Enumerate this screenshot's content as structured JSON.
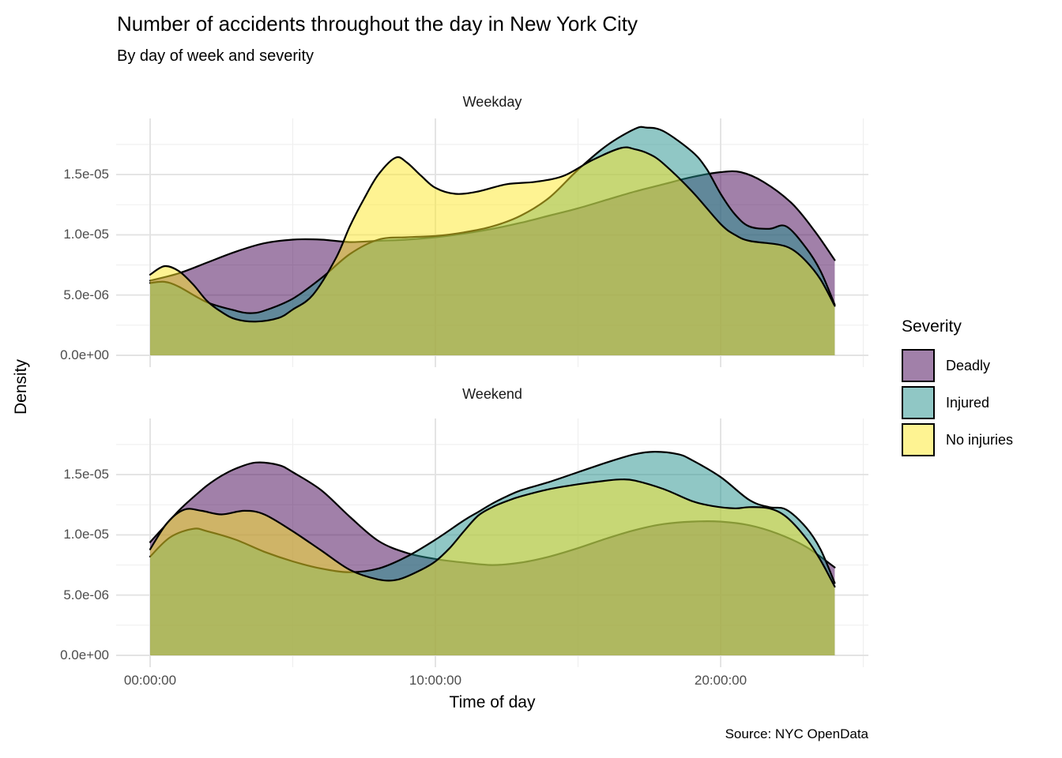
{
  "title": "Number of accidents throughout the day in New York City",
  "subtitle": "By day of week and severity",
  "caption": "Source: NYC OpenData",
  "y_axis": {
    "label": "Density",
    "tick_labels": [
      "0.0e+00",
      "5.0e-06",
      "1.0e-05",
      "1.5e-05"
    ],
    "tick_values_e06": [
      0,
      5,
      10,
      15
    ],
    "minor_values_e06": [
      2.5,
      7.5,
      12.5,
      17.5
    ]
  },
  "x_axis": {
    "label": "Time of day",
    "tick_labels": [
      "00:00:00",
      "10:00:00",
      "20:00:00"
    ],
    "tick_hours": [
      0,
      10,
      20
    ],
    "minor_hours": [
      5,
      15,
      25
    ]
  },
  "legend": {
    "title": "Severity",
    "fill_opacity": 0.5,
    "items": [
      {
        "label": "Deadly",
        "color": "#440154"
      },
      {
        "label": "Injured",
        "color": "#21908C"
      },
      {
        "label": "No injuries",
        "color": "#FDE725"
      }
    ]
  },
  "chart_data": {
    "type": "area",
    "subtype": "overlapping kernel density curves (geom_density), black outline, 50% fill opacity",
    "x_unit": "time of day in hours (0-24)",
    "y_unit": "density, values in 1e-06",
    "xlim_hours": [
      0,
      24
    ],
    "ylim_e06": [
      0,
      19.7
    ],
    "grid": "major and minor light gray gridlines, white background",
    "legend_position": "right",
    "facets": [
      {
        "name": "Weekday",
        "series": [
          {
            "name": "Deadly",
            "color": "#440154",
            "points": [
              [
                0,
                6.2
              ],
              [
                1,
                6.8
              ],
              [
                2,
                7.7
              ],
              [
                3,
                8.6
              ],
              [
                4,
                9.3
              ],
              [
                5,
                9.6
              ],
              [
                6,
                9.6
              ],
              [
                7,
                9.4
              ],
              [
                8,
                9.5
              ],
              [
                9,
                9.6
              ],
              [
                10,
                9.8
              ],
              [
                11,
                10.1
              ],
              [
                12,
                10.5
              ],
              [
                13,
                11
              ],
              [
                14,
                11.6
              ],
              [
                15,
                12.2
              ],
              [
                16,
                12.9
              ],
              [
                17,
                13.6
              ],
              [
                18,
                14.2
              ],
              [
                19,
                14.8
              ],
              [
                20,
                15.2
              ],
              [
                20.7,
                15.2
              ],
              [
                21.5,
                14.4
              ],
              [
                22.5,
                12.6
              ],
              [
                23.3,
                10.3
              ],
              [
                24,
                7.9
              ]
            ]
          },
          {
            "name": "Injured",
            "color": "#21908C",
            "points": [
              [
                0,
                6
              ],
              [
                0.5,
                6.1
              ],
              [
                1,
                5.7
              ],
              [
                2,
                4.4
              ],
              [
                3,
                3.7
              ],
              [
                3.5,
                3.5
              ],
              [
                4,
                3.7
              ],
              [
                5,
                4.7
              ],
              [
                6,
                6.4
              ],
              [
                7,
                8.4
              ],
              [
                8,
                9.6
              ],
              [
                9,
                9.8
              ],
              [
                10,
                9.9
              ],
              [
                11,
                10.2
              ],
              [
                12,
                10.7
              ],
              [
                13,
                11.6
              ],
              [
                14,
                13.1
              ],
              [
                15,
                15.4
              ],
              [
                16,
                17.4
              ],
              [
                17,
                18.8
              ],
              [
                17.4,
                18.9
              ],
              [
                18,
                18.6
              ],
              [
                19,
                16.9
              ],
              [
                19.5,
                15.5
              ],
              [
                20,
                13.4
              ],
              [
                20.5,
                11.7
              ],
              [
                21,
                10.7
              ],
              [
                21.7,
                10.5
              ],
              [
                22.3,
                10.7
              ],
              [
                23,
                8.9
              ],
              [
                23.5,
                7
              ],
              [
                24,
                4.2
              ]
            ]
          },
          {
            "name": "No injuries",
            "color": "#FDE725",
            "points": [
              [
                0,
                6.7
              ],
              [
                0.5,
                7.4
              ],
              [
                1,
                7
              ],
              [
                1.5,
                5.9
              ],
              [
                2,
                4.5
              ],
              [
                2.5,
                3.6
              ],
              [
                3,
                3
              ],
              [
                3.7,
                2.8
              ],
              [
                4.5,
                3.1
              ],
              [
                5,
                3.8
              ],
              [
                5.7,
                5
              ],
              [
                6.5,
                8
              ],
              [
                7,
                10.7
              ],
              [
                7.5,
                13
              ],
              [
                8,
                15
              ],
              [
                8.6,
                16.4
              ],
              [
                9,
                16
              ],
              [
                9.5,
                14.9
              ],
              [
                10,
                13.9
              ],
              [
                10.7,
                13.4
              ],
              [
                11.5,
                13.6
              ],
              [
                12.5,
                14.2
              ],
              [
                13.5,
                14.4
              ],
              [
                14.5,
                14.9
              ],
              [
                15.5,
                16.2
              ],
              [
                16.5,
                17.2
              ],
              [
                17,
                17.1
              ],
              [
                17.5,
                16.7
              ],
              [
                18,
                15.9
              ],
              [
                19,
                13.6
              ],
              [
                20,
                10.9
              ],
              [
                20.5,
                10
              ],
              [
                21,
                9.5
              ],
              [
                22,
                9.2
              ],
              [
                22.5,
                8.8
              ],
              [
                23,
                7.8
              ],
              [
                23.5,
                6.3
              ],
              [
                24,
                4.1
              ]
            ]
          }
        ]
      },
      {
        "name": "Weekend",
        "series": [
          {
            "name": "Deadly",
            "color": "#440154",
            "points": [
              [
                0,
                9.4
              ],
              [
                0.5,
                10.7
              ],
              [
                1,
                12
              ],
              [
                1.5,
                13.1
              ],
              [
                2,
                14.1
              ],
              [
                2.5,
                14.9
              ],
              [
                3,
                15.5
              ],
              [
                3.7,
                16
              ],
              [
                4.5,
                15.8
              ],
              [
                5,
                15.2
              ],
              [
                6,
                13.7
              ],
              [
                7,
                11.5
              ],
              [
                8,
                9.5
              ],
              [
                9,
                8.5
              ],
              [
                10,
                8
              ],
              [
                11,
                7.7
              ],
              [
                12,
                7.5
              ],
              [
                13,
                7.7
              ],
              [
                14,
                8.2
              ],
              [
                15,
                8.9
              ],
              [
                16,
                9.7
              ],
              [
                17,
                10.4
              ],
              [
                18,
                10.9
              ],
              [
                19,
                11.1
              ],
              [
                20,
                11.1
              ],
              [
                21,
                10.8
              ],
              [
                22,
                10.1
              ],
              [
                23,
                9
              ],
              [
                24,
                7.3
              ]
            ]
          },
          {
            "name": "Injured",
            "color": "#21908C",
            "points": [
              [
                0,
                8.2
              ],
              [
                0.7,
                9.8
              ],
              [
                1.5,
                10.5
              ],
              [
                2,
                10.3
              ],
              [
                3,
                9.6
              ],
              [
                4,
                8.6
              ],
              [
                5,
                7.8
              ],
              [
                6,
                7.2
              ],
              [
                7,
                6.9
              ],
              [
                8,
                7.2
              ],
              [
                9,
                8.2
              ],
              [
                10,
                9.6
              ],
              [
                11,
                11.2
              ],
              [
                11.5,
                11.9
              ],
              [
                12,
                12.6
              ],
              [
                12.5,
                13.2
              ],
              [
                13,
                13.7
              ],
              [
                14,
                14.4
              ],
              [
                15,
                15.2
              ],
              [
                16,
                16
              ],
              [
                17,
                16.7
              ],
              [
                17.7,
                16.9
              ],
              [
                18.5,
                16.7
              ],
              [
                19,
                16.2
              ],
              [
                20,
                14.8
              ],
              [
                21,
                12.9
              ],
              [
                21.7,
                12.3
              ],
              [
                22.3,
                12.1
              ],
              [
                23,
                10.6
              ],
              [
                23.5,
                8.8
              ],
              [
                24,
                6
              ]
            ]
          },
          {
            "name": "No injuries",
            "color": "#FDE725",
            "points": [
              [
                0,
                8.8
              ],
              [
                0.6,
                11
              ],
              [
                1.2,
                12.1
              ],
              [
                1.8,
                12
              ],
              [
                2.5,
                11.7
              ],
              [
                3.3,
                12
              ],
              [
                4,
                11.7
              ],
              [
                5,
                10.3
              ],
              [
                6,
                8.7
              ],
              [
                7,
                7.1
              ],
              [
                8,
                6.3
              ],
              [
                8.7,
                6.3
              ],
              [
                9.5,
                7.1
              ],
              [
                10,
                7.8
              ],
              [
                10.5,
                8.9
              ],
              [
                11,
                10.3
              ],
              [
                11.5,
                11.6
              ],
              [
                12,
                12.3
              ],
              [
                12.5,
                12.8
              ],
              [
                13,
                13.2
              ],
              [
                14,
                13.8
              ],
              [
                15,
                14.2
              ],
              [
                16,
                14.5
              ],
              [
                16.5,
                14.6
              ],
              [
                17,
                14.5
              ],
              [
                18,
                13.8
              ],
              [
                19,
                12.8
              ],
              [
                19.7,
                12.4
              ],
              [
                20.5,
                12.2
              ],
              [
                21,
                12.3
              ],
              [
                21.7,
                12.2
              ],
              [
                22.3,
                11.5
              ],
              [
                23,
                9.7
              ],
              [
                23.5,
                7.9
              ],
              [
                24,
                5.7
              ]
            ]
          }
        ]
      }
    ]
  }
}
